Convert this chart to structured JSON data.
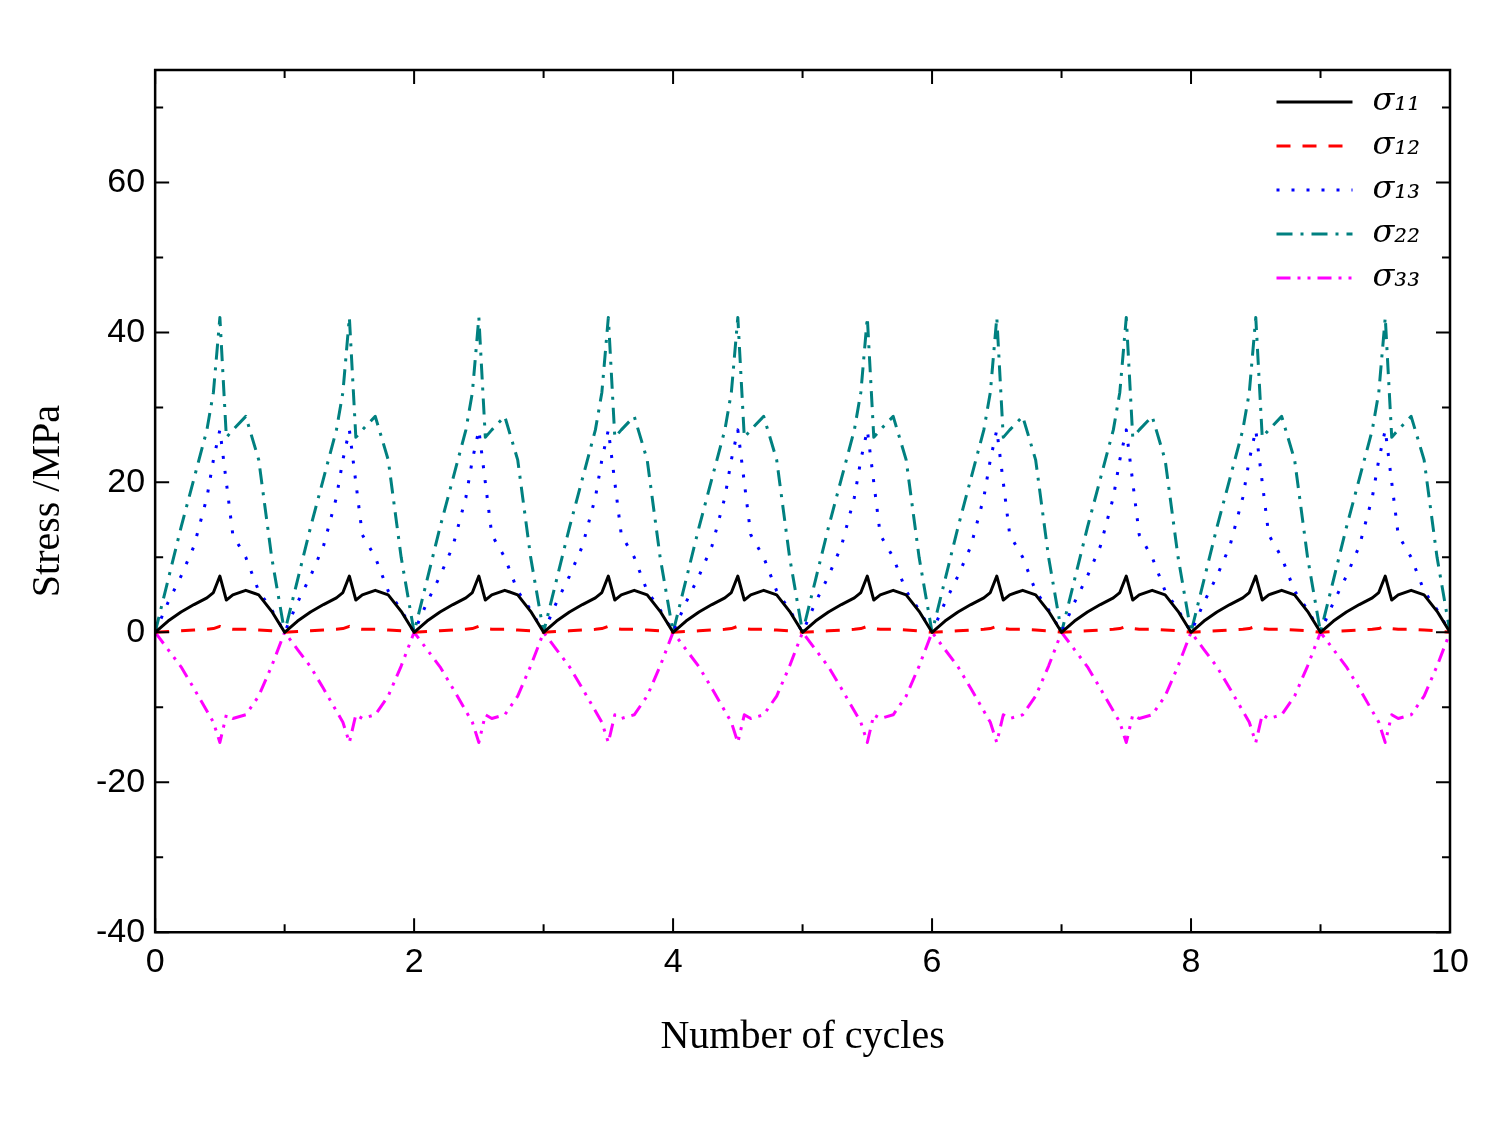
{
  "chart_data": {
    "type": "line",
    "xlabel": "Number of cycles",
    "ylabel": "Stress /MPa",
    "x": [
      0,
      0.1,
      0.2,
      0.3,
      0.4,
      0.45,
      0.5,
      0.55,
      0.6,
      0.7,
      0.8,
      0.9,
      1,
      1.1,
      1.2,
      1.3,
      1.4,
      1.45,
      1.5,
      1.55,
      1.6,
      1.7,
      1.8,
      1.9,
      2,
      2.1,
      2.2,
      2.3,
      2.4,
      2.45,
      2.5,
      2.55,
      2.6,
      2.7,
      2.8,
      2.9,
      3,
      3.1,
      3.2,
      3.3,
      3.4,
      3.45,
      3.5,
      3.55,
      3.6,
      3.7,
      3.8,
      3.9,
      4,
      4.1,
      4.2,
      4.3,
      4.4,
      4.45,
      4.5,
      4.55,
      4.6,
      4.7,
      4.8,
      4.9,
      5,
      5.1,
      5.2,
      5.3,
      5.4,
      5.45,
      5.5,
      5.55,
      5.6,
      5.7,
      5.8,
      5.9,
      6,
      6.1,
      6.2,
      6.3,
      6.4,
      6.45,
      6.5,
      6.55,
      6.6,
      6.7,
      6.8,
      6.9,
      7,
      7.1,
      7.2,
      7.3,
      7.4,
      7.45,
      7.5,
      7.55,
      7.6,
      7.7,
      7.8,
      7.9,
      8,
      8.1,
      8.2,
      8.3,
      8.4,
      8.45,
      8.5,
      8.55,
      8.6,
      8.7,
      8.8,
      8.9,
      9,
      9.1,
      9.2,
      9.3,
      9.4,
      9.45,
      9.5,
      9.55,
      9.6,
      9.7,
      9.8,
      9.9,
      10
    ],
    "series": [
      {
        "name": "σ₁₁",
        "color": "#000000",
        "line_style": "solid",
        "values": [
          0,
          1.5,
          2.7,
          3.7,
          4.6,
          5.3,
          7.5,
          4.3,
          5,
          5.6,
          5,
          2.8,
          0,
          1.5,
          2.7,
          3.7,
          4.6,
          5.3,
          7.5,
          4.3,
          5,
          5.6,
          5,
          2.8,
          0,
          1.5,
          2.7,
          3.7,
          4.6,
          5.3,
          7.5,
          4.3,
          5,
          5.6,
          5,
          2.8,
          0,
          1.5,
          2.7,
          3.7,
          4.6,
          5.3,
          7.5,
          4.3,
          5,
          5.6,
          5,
          2.8,
          0,
          1.5,
          2.7,
          3.7,
          4.6,
          5.3,
          7.5,
          4.3,
          5,
          5.6,
          5,
          2.8,
          0,
          1.5,
          2.7,
          3.7,
          4.6,
          5.3,
          7.5,
          4.3,
          5,
          5.6,
          5,
          2.8,
          0,
          1.5,
          2.7,
          3.7,
          4.6,
          5.3,
          7.5,
          4.3,
          5,
          5.6,
          5,
          2.8,
          0,
          1.5,
          2.7,
          3.7,
          4.6,
          5.3,
          7.5,
          4.3,
          5,
          5.6,
          5,
          2.8,
          0,
          1.5,
          2.7,
          3.7,
          4.6,
          5.3,
          7.5,
          4.3,
          5,
          5.6,
          5,
          2.8,
          0,
          1.5,
          2.7,
          3.7,
          4.6,
          5.3,
          7.5,
          4.3,
          5,
          5.6,
          5,
          2.8,
          0
        ]
      },
      {
        "name": "σ₁₂",
        "color": "#ff0000",
        "line_style": "dashed",
        "values": [
          0,
          0.1,
          0.2,
          0.3,
          0.4,
          0.5,
          0.8,
          0.5,
          0.4,
          0.4,
          0.3,
          0.2,
          0,
          0.1,
          0.2,
          0.3,
          0.4,
          0.5,
          0.8,
          0.5,
          0.4,
          0.4,
          0.3,
          0.2,
          0,
          0.1,
          0.2,
          0.3,
          0.4,
          0.5,
          0.8,
          0.5,
          0.4,
          0.4,
          0.3,
          0.2,
          0,
          0.1,
          0.2,
          0.3,
          0.4,
          0.5,
          0.8,
          0.5,
          0.4,
          0.4,
          0.3,
          0.2,
          0,
          0.1,
          0.2,
          0.3,
          0.4,
          0.5,
          0.8,
          0.5,
          0.4,
          0.4,
          0.3,
          0.2,
          0,
          0.1,
          0.2,
          0.3,
          0.4,
          0.5,
          0.8,
          0.5,
          0.4,
          0.4,
          0.3,
          0.2,
          0,
          0.1,
          0.2,
          0.3,
          0.4,
          0.5,
          0.8,
          0.5,
          0.4,
          0.4,
          0.3,
          0.2,
          0,
          0.1,
          0.2,
          0.3,
          0.4,
          0.5,
          0.8,
          0.5,
          0.4,
          0.4,
          0.3,
          0.2,
          0,
          0.1,
          0.2,
          0.3,
          0.4,
          0.5,
          0.8,
          0.5,
          0.4,
          0.4,
          0.3,
          0.2,
          0,
          0.1,
          0.2,
          0.3,
          0.4,
          0.5,
          0.8,
          0.5,
          0.4,
          0.4,
          0.3,
          0.2,
          0
        ]
      },
      {
        "name": "σ₁₃",
        "color": "#0000ff",
        "line_style": "dotted",
        "values": [
          0,
          4,
          7.5,
          11.5,
          18,
          23,
          27,
          20,
          13,
          10,
          5.5,
          3,
          0,
          4,
          7.5,
          11.5,
          18,
          23,
          27,
          20,
          13,
          10,
          5.5,
          3,
          0,
          4,
          7.5,
          11.5,
          18,
          23,
          27,
          20,
          13,
          10,
          5.5,
          3,
          0,
          4,
          7.5,
          11.5,
          18,
          23,
          27,
          20,
          13,
          10,
          5.5,
          3,
          0,
          4,
          7.5,
          11.5,
          18,
          23,
          27,
          20,
          13,
          10,
          5.5,
          3,
          0,
          4,
          7.5,
          11.5,
          18,
          23,
          27,
          20,
          13,
          10,
          5.5,
          3,
          0,
          4,
          7.5,
          11.5,
          18,
          23,
          27,
          20,
          13,
          10,
          5.5,
          3,
          0,
          4,
          7.5,
          11.5,
          18,
          23,
          27,
          20,
          13,
          10,
          5.5,
          3,
          0,
          4,
          7.5,
          11.5,
          18,
          23,
          27,
          20,
          13,
          10,
          5.5,
          3,
          0,
          4,
          7.5,
          11.5,
          18,
          23,
          27,
          20,
          13,
          10,
          5.5,
          3,
          0
        ]
      },
      {
        "name": "σ₂₂",
        "color": "#008080",
        "line_style": "dashdot",
        "values": [
          0,
          7,
          14,
          20.5,
          27,
          32,
          42,
          26,
          27,
          28.8,
          23,
          10,
          0,
          7,
          14,
          20.5,
          27,
          32,
          42,
          26,
          27,
          28.8,
          23,
          10,
          0,
          7,
          14,
          20.5,
          27,
          32,
          42,
          26,
          27,
          28.8,
          23,
          10,
          0,
          7,
          14,
          20.5,
          27,
          32,
          42,
          26,
          27,
          28.8,
          23,
          10,
          0,
          7,
          14,
          20.5,
          27,
          32,
          42,
          26,
          27,
          28.8,
          23,
          10,
          0,
          7,
          14,
          20.5,
          27,
          32,
          42,
          26,
          27,
          28.8,
          23,
          10,
          0,
          7,
          14,
          20.5,
          27,
          32,
          42,
          26,
          27,
          28.8,
          23,
          10,
          0,
          7,
          14,
          20.5,
          27,
          32,
          42,
          26,
          27,
          28.8,
          23,
          10,
          0,
          7,
          14,
          20.5,
          27,
          32,
          42,
          26,
          27,
          28.8,
          23,
          10,
          0,
          7,
          14,
          20.5,
          27,
          32,
          42,
          26,
          27,
          28.8,
          23,
          10,
          0
        ]
      },
      {
        "name": "σ₃₃",
        "color": "#ff00ff",
        "line_style": "dashdotdot",
        "values": [
          0,
          -2.3,
          -4.6,
          -7.5,
          -10.5,
          -12,
          -14.7,
          -11,
          -11.5,
          -11,
          -8.5,
          -4.5,
          0,
          -2.3,
          -4.6,
          -7.5,
          -10.5,
          -12,
          -14.7,
          -11,
          -11.5,
          -11,
          -8.5,
          -4.5,
          0,
          -2.3,
          -4.6,
          -7.5,
          -10.5,
          -12,
          -14.7,
          -11,
          -11.5,
          -11,
          -8.5,
          -4.5,
          0,
          -2.3,
          -4.6,
          -7.5,
          -10.5,
          -12,
          -14.7,
          -11,
          -11.5,
          -11,
          -8.5,
          -4.5,
          0,
          -2.3,
          -4.6,
          -7.5,
          -10.5,
          -12,
          -14.7,
          -11,
          -11.5,
          -11,
          -8.5,
          -4.5,
          0,
          -2.3,
          -4.6,
          -7.5,
          -10.5,
          -12,
          -14.7,
          -11,
          -11.5,
          -11,
          -8.5,
          -4.5,
          0,
          -2.3,
          -4.6,
          -7.5,
          -10.5,
          -12,
          -14.7,
          -11,
          -11.5,
          -11,
          -8.5,
          -4.5,
          0,
          -2.3,
          -4.6,
          -7.5,
          -10.5,
          -12,
          -14.7,
          -11,
          -11.5,
          -11,
          -8.5,
          -4.5,
          0,
          -2.3,
          -4.6,
          -7.5,
          -10.5,
          -12,
          -14.7,
          -11,
          -11.5,
          -11,
          -8.5,
          -4.5,
          0,
          -2.3,
          -4.6,
          -7.5,
          -10.5,
          -12,
          -14.7,
          -11,
          -11.5,
          -11,
          -8.5,
          -4.5,
          0
        ]
      }
    ],
    "xlim": [
      0,
      10
    ],
    "xticks": [
      0,
      {
        "value": 1,
        "label": null
      },
      2,
      {
        "value": 3,
        "label": null
      },
      4,
      {
        "value": 5,
        "label": null
      },
      6,
      {
        "value": 7,
        "label": null
      },
      8,
      {
        "value": 9,
        "label": null
      },
      10
    ],
    "ylim": [
      -40,
      75
    ],
    "yticks": [
      -40,
      {
        "value": -30,
        "label": null
      },
      -20,
      {
        "value": -10,
        "label": null
      },
      0,
      {
        "value": 10,
        "label": null
      },
      20,
      {
        "value": 30,
        "label": null
      },
      40,
      {
        "value": 50,
        "label": null
      },
      60,
      {
        "value": 70,
        "label": null
      }
    ],
    "grid": false,
    "legend": "top right",
    "marker": "none"
  }
}
